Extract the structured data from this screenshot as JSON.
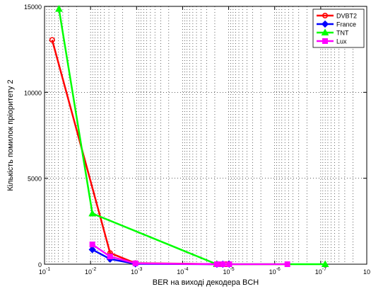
{
  "chart_data": {
    "type": "line",
    "xlabel": "BER на виході декодера BCH",
    "ylabel": "Кількість помилок пріоритету 2",
    "x_scale": "log",
    "x_reversed": true,
    "xlim": [
      0.1,
      1e-08
    ],
    "ylim": [
      0,
      15000
    ],
    "grid": true,
    "legend_position": "top-right",
    "x_ticks": [
      {
        "value": 0.1,
        "base": "10",
        "exp": "-1"
      },
      {
        "value": 0.01,
        "base": "10",
        "exp": "-2"
      },
      {
        "value": 0.001,
        "base": "10",
        "exp": "-3"
      },
      {
        "value": 0.0001,
        "base": "10",
        "exp": "-4"
      },
      {
        "value": 1e-05,
        "base": "10",
        "exp": "-5"
      },
      {
        "value": 1e-06,
        "base": "10",
        "exp": "-6"
      },
      {
        "value": 1e-07,
        "base": "10",
        "exp": "-7"
      },
      {
        "value": 1e-08,
        "base": "10",
        "exp": ""
      }
    ],
    "y_ticks": [
      {
        "value": 0,
        "label": "0"
      },
      {
        "value": 5000,
        "label": "5000"
      },
      {
        "value": 10000,
        "label": "10000"
      },
      {
        "value": 15000,
        "label": "15000"
      }
    ],
    "series": [
      {
        "name": "DVBT2",
        "color": "#ff0000",
        "marker": "circle",
        "x": [
          0.0683,
          0.00376,
          0.00106,
          1.68e-05,
          1.14e-05,
          9.7e-06
        ],
        "y": [
          13050,
          650,
          60,
          0,
          0,
          0
        ]
      },
      {
        "name": "France",
        "color": "#0000ff",
        "marker": "diamond",
        "x": [
          0.00915,
          0.00376,
          0.00106,
          1.8e-05,
          1.34e-05,
          9.7e-06
        ],
        "y": [
          850,
          300,
          20,
          0,
          0,
          0
        ]
      },
      {
        "name": "TNT",
        "color": "#00ff00",
        "marker": "triangle",
        "x": [
          0.0486,
          0.00915,
          1.82e-05,
          8e-08
        ],
        "y": [
          14850,
          2950,
          0,
          0
        ]
      },
      {
        "name": "Lux",
        "color": "#ff00ff",
        "marker": "square",
        "x": [
          0.00915,
          0.00376,
          0.00106,
          1.8e-05,
          1.34e-05,
          9.7e-06,
          5.3e-07
        ],
        "y": [
          1150,
          450,
          50,
          0,
          0,
          0,
          0
        ]
      }
    ]
  }
}
